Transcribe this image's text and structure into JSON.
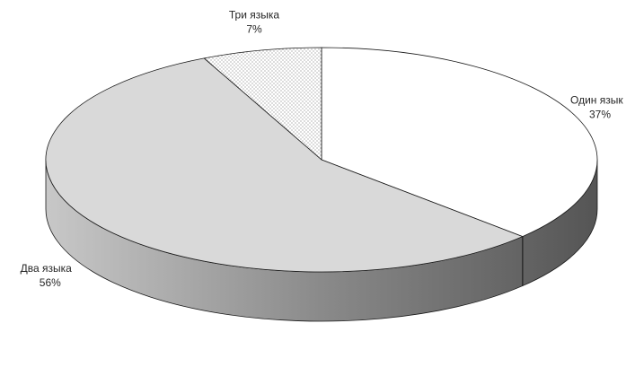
{
  "chart_data": {
    "type": "pie",
    "style": "3d",
    "categories": [
      "Один язык",
      "Два языка",
      "Три языка"
    ],
    "values": [
      37,
      56,
      7
    ],
    "value_labels": [
      "37%",
      "56%",
      "7%"
    ],
    "colors": [
      "#ffffff",
      "#d9d9d9",
      "#ffffff"
    ],
    "patterns": [
      "none",
      "none",
      "dots"
    ],
    "start_angle_deg": 0,
    "direction": "clockwise"
  }
}
